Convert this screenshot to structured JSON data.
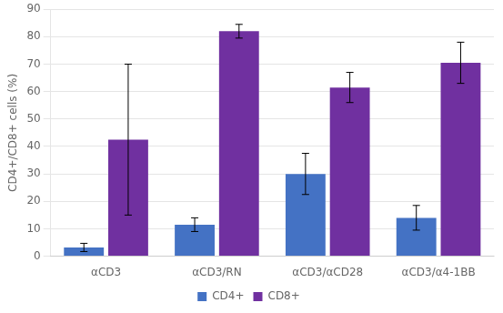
{
  "chart_data": {
    "type": "bar",
    "categories": [
      "αCD3",
      "αCD3/RN",
      "αCD3/αCD28",
      "αCD3/α4-1BB"
    ],
    "series": [
      {
        "name": "CD4+",
        "color": "#4472C4",
        "values": [
          3.2,
          11.5,
          30.0,
          14.0
        ],
        "errors": [
          1.5,
          2.5,
          7.5,
          4.5
        ]
      },
      {
        "name": "CD8+",
        "color": "#7030A0",
        "values": [
          42.5,
          82.0,
          61.5,
          70.5
        ],
        "errors": [
          27.5,
          2.5,
          5.5,
          7.5
        ]
      }
    ],
    "ylabel": "CD4+/CD8+ cells (%)",
    "ylim": [
      0,
      90
    ],
    "yticks": [
      0,
      10,
      20,
      30,
      40,
      50,
      60,
      70,
      80,
      90
    ],
    "grid": "y",
    "legend": "bottom"
  }
}
